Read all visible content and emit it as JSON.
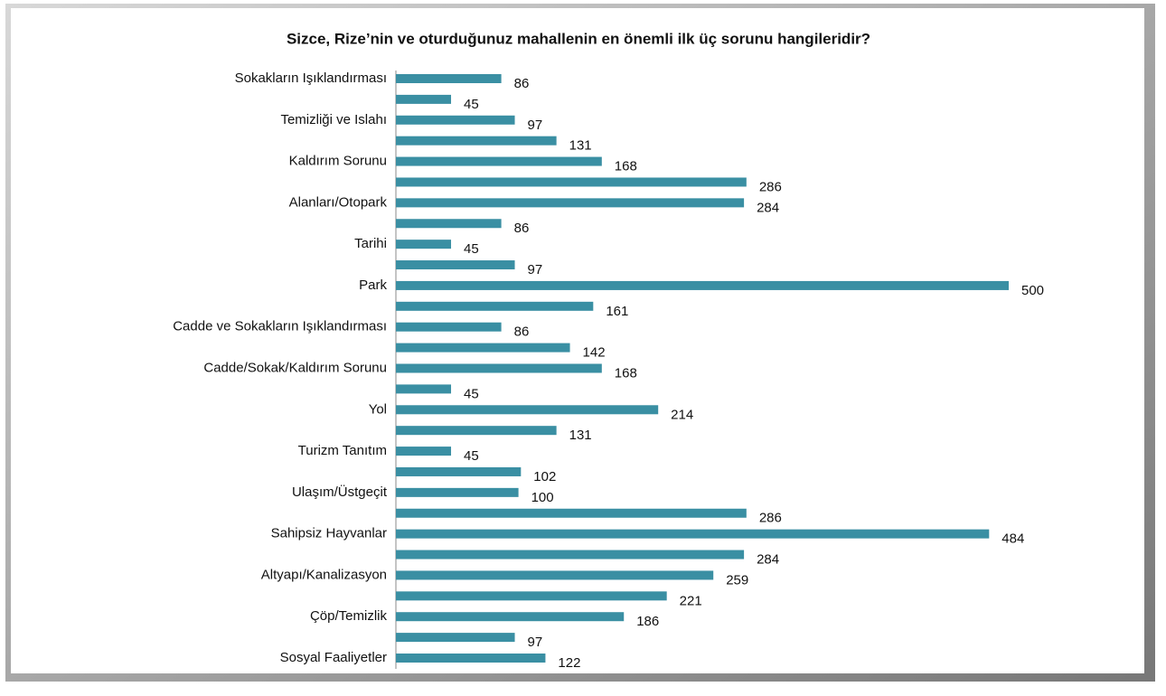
{
  "chart_data": {
    "type": "hbar",
    "title": "Sizce, Rize’nin ve oturduğunuz mahallenin en önemli ilk üç sorunu hangileridir?",
    "categories": [
      "Sokakların Işıklandırması",
      null,
      "Temizliği ve Islahı",
      null,
      "Kaldırım Sorunu",
      null,
      "Alanları/Otopark",
      null,
      "Tarihi",
      null,
      "Park",
      null,
      "Cadde ve Sokakların Işıklandırması",
      null,
      "Cadde/Sokak/Kaldırım Sorunu",
      null,
      "Yol",
      null,
      "Turizm Tanıtım",
      null,
      "Ulaşım/Üstgeçit",
      null,
      "Sahipsiz Hayvanlar",
      null,
      "Altyapı/Kanalizasyon",
      null,
      "Çöp/Temizlik",
      null,
      "Sosyal Faaliyetler"
    ],
    "values": [
      86,
      45,
      97,
      131,
      168,
      286,
      284,
      86,
      45,
      97,
      500,
      161,
      86,
      142,
      168,
      45,
      214,
      131,
      45,
      102,
      100,
      286,
      484,
      284,
      259,
      221,
      186,
      97,
      122
    ],
    "color": "#3a8fa3"
  }
}
